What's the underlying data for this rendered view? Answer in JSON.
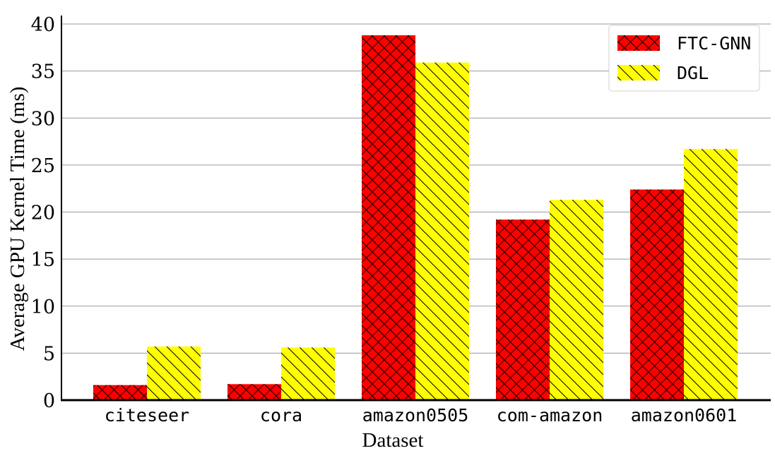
{
  "chart_data": {
    "type": "bar",
    "xlabel": "Dataset",
    "ylabel": "Average GPU Kernel Time (ms)",
    "categories": [
      "citeseer",
      "cora",
      "amazon0505",
      "com-amazon",
      "amazon0601"
    ],
    "series": [
      {
        "name": "FTC-GNN",
        "values": [
          1.6,
          1.7,
          38.8,
          19.2,
          22.4
        ],
        "color": "#ff0000",
        "hatch": "crosshatch"
      },
      {
        "name": "DGL",
        "values": [
          5.7,
          5.6,
          35.9,
          21.3,
          26.7
        ],
        "color": "#ffff00",
        "hatch": "backslash"
      }
    ],
    "ylim": [
      0,
      40
    ],
    "yticks": [
      "0",
      "5",
      "10",
      "15",
      "20",
      "25",
      "30",
      "35",
      "40"
    ],
    "grid": true,
    "legend_position": "top-right"
  }
}
